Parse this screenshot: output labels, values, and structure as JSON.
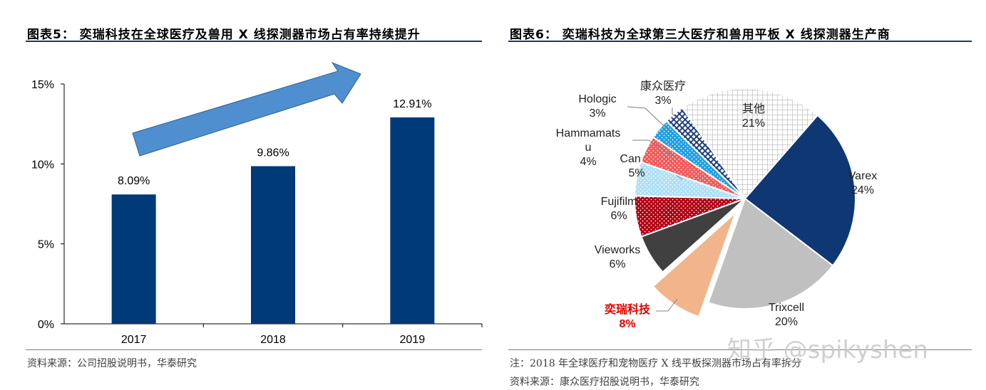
{
  "left": {
    "title": "图表5：  奕瑞科技在全球医疗及兽用 X 线探测器市场占有率持续提升",
    "source": "资料来源：公司招股说明书，华泰研究"
  },
  "right": {
    "title": "图表6：  奕瑞科技为全球第三大医疗和兽用平板 X 线探测器生产商",
    "note": "注：2018 年全球医疗和宠物医疗 X 线平板探测器市场占有率拆分",
    "source": "资料来源：康众医疗招股说明书，华泰研究"
  },
  "watermark": "知乎 @spikyshen",
  "chart_data": [
    {
      "type": "bar",
      "categories": [
        "2017",
        "2018",
        "2019"
      ],
      "values": [
        8.09,
        9.86,
        12.91
      ],
      "data_labels": [
        "8.09%",
        "9.86%",
        "12.91%"
      ],
      "yticks": [
        "0%",
        "5%",
        "10%",
        "15%"
      ],
      "ylim": [
        0,
        15
      ],
      "bar_color": "#003a78",
      "annotation": "upward-arrow",
      "arrow_color": "#4f8fd0"
    },
    {
      "type": "pie",
      "slices": [
        {
          "label": "Varex",
          "value": 24,
          "value_label": "24%",
          "color": "#0e3773",
          "pattern": "solid"
        },
        {
          "label": "Trixcell",
          "value": 20,
          "value_label": "20%",
          "color": "#c0c0c0",
          "pattern": "solid"
        },
        {
          "label": "奕瑞科技",
          "value": 8,
          "value_label": "8%",
          "color": "#f2b48a",
          "pattern": "solid",
          "exploded": true,
          "label_color": "#e00000"
        },
        {
          "label": "Vieworks",
          "value": 6,
          "value_label": "6%",
          "color": "#404040",
          "pattern": "solid"
        },
        {
          "label": "Fujifilm",
          "value": 6,
          "value_label": "6%",
          "color": "#b00012",
          "pattern": "dots"
        },
        {
          "label": "Canon",
          "value": 5,
          "value_label": "5%",
          "color": "#aee0f5",
          "pattern": "dots"
        },
        {
          "label": "Hammamatsu",
          "label_lines": [
            "Hammamats",
            "u"
          ],
          "value": 4,
          "value_label": "4%",
          "color": "#ef5a5a",
          "pattern": "dots"
        },
        {
          "label": "Hologic",
          "value": 3,
          "value_label": "3%",
          "color": "#1f9fe0",
          "pattern": "dots"
        },
        {
          "label": "康众医疗",
          "value": 3,
          "value_label": "3%",
          "color": "#1f3d7a",
          "pattern": "crosshatch"
        },
        {
          "label": "其他",
          "value": 21,
          "value_label": "21%",
          "color": "#d8d8d8",
          "pattern": "grid"
        }
      ]
    }
  ]
}
